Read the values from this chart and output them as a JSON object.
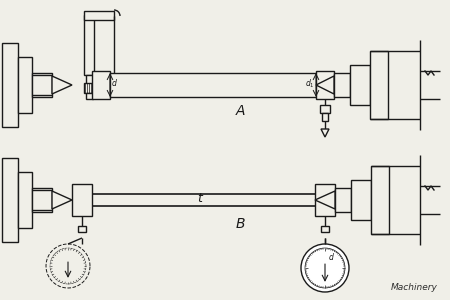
{
  "bg_color": "#f0efe8",
  "line_color": "#1a1a1a",
  "label_A": "A",
  "label_B": "B",
  "watermark": "Machinery",
  "lw": 1.0
}
